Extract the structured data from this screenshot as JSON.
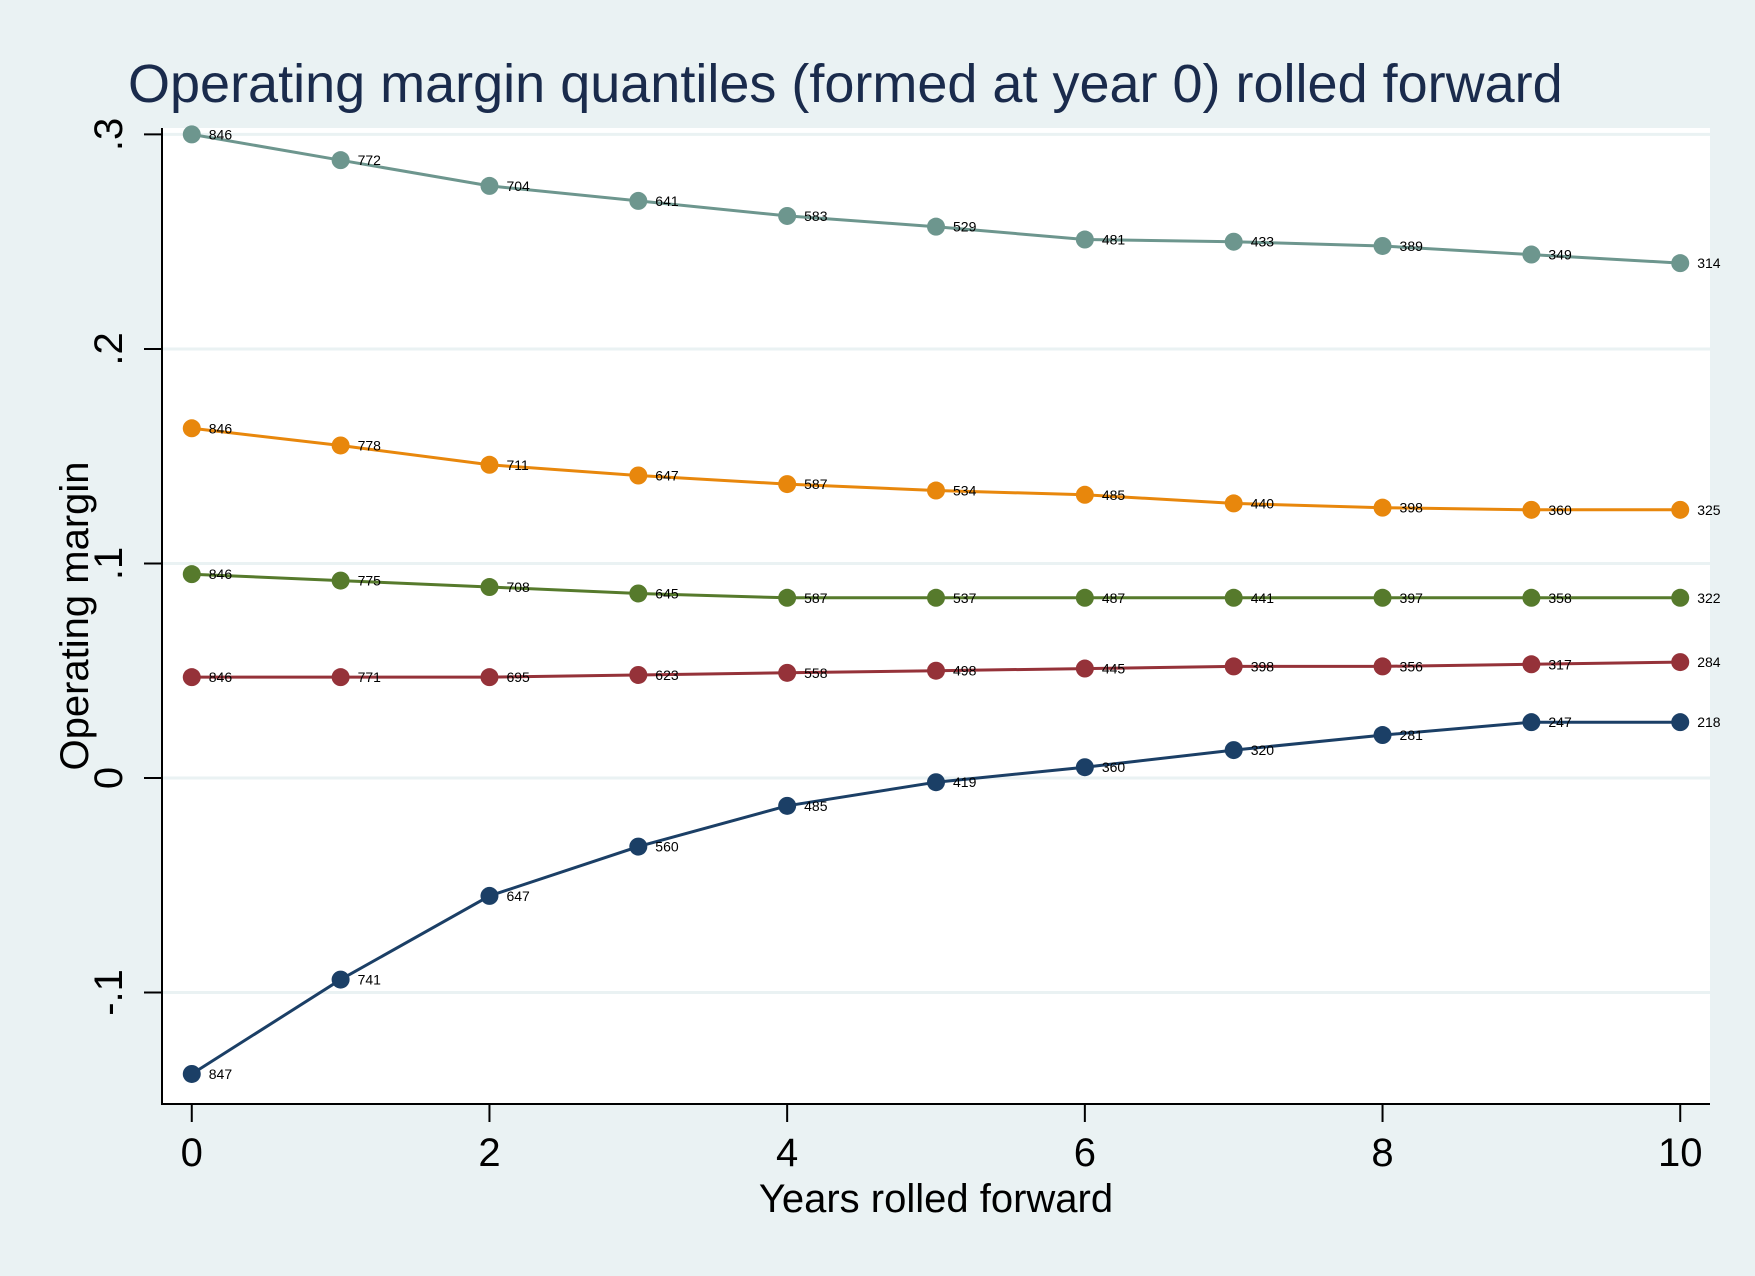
{
  "chart_data": {
    "type": "line",
    "title": "Operating margin quantiles (formed at year 0) rolled forward",
    "xlabel": "Years rolled forward",
    "ylabel": "Operating margin",
    "xlim": [
      -0.2,
      10.2
    ],
    "ylim": [
      -0.152,
      0.303
    ],
    "x_ticks": [
      0,
      2,
      4,
      6,
      8,
      10
    ],
    "x_tick_labels": [
      "0",
      "2",
      "4",
      "6",
      "8",
      "10"
    ],
    "y_ticks": [
      -0.1,
      0,
      0.1,
      0.2,
      0.3
    ],
    "y_tick_labels": [
      "-.1",
      "0",
      ".1",
      ".2",
      ".3"
    ],
    "grid": true,
    "legend": "none",
    "x": [
      0,
      1,
      2,
      3,
      4,
      5,
      6,
      7,
      8,
      9,
      10
    ],
    "series": [
      {
        "color": "#6d968e",
        "values": [
          0.3,
          0.288,
          0.276,
          0.269,
          0.262,
          0.257,
          0.251,
          0.25,
          0.248,
          0.244,
          0.24
        ],
        "labels": [
          "846",
          "772",
          "704",
          "641",
          "583",
          "529",
          "481",
          "433",
          "389",
          "349",
          "314"
        ]
      },
      {
        "color": "#e8870c",
        "values": [
          0.163,
          0.155,
          0.146,
          0.141,
          0.137,
          0.134,
          0.132,
          0.128,
          0.126,
          0.125,
          0.125
        ],
        "labels": [
          "846",
          "778",
          "711",
          "647",
          "587",
          "534",
          "485",
          "440",
          "398",
          "360",
          "325"
        ]
      },
      {
        "color": "#567a2c",
        "values": [
          0.095,
          0.092,
          0.089,
          0.086,
          0.084,
          0.084,
          0.084,
          0.084,
          0.084,
          0.084,
          0.084
        ],
        "labels": [
          "846",
          "775",
          "708",
          "645",
          "587",
          "537",
          "487",
          "441",
          "397",
          "358",
          "322"
        ]
      },
      {
        "color": "#953239",
        "values": [
          0.047,
          0.047,
          0.047,
          0.048,
          0.049,
          0.05,
          0.051,
          0.052,
          0.052,
          0.053,
          0.054
        ],
        "labels": [
          "846",
          "771",
          "695",
          "623",
          "558",
          "498",
          "445",
          "398",
          "356",
          "317",
          "284"
        ]
      },
      {
        "color": "#1b3f66",
        "values": [
          -0.138,
          -0.094,
          -0.055,
          -0.032,
          -0.013,
          -0.002,
          0.005,
          0.013,
          0.02,
          0.026,
          0.026
        ],
        "labels": [
          "847",
          "741",
          "647",
          "560",
          "485",
          "419",
          "360",
          "320",
          "281",
          "247",
          "218"
        ]
      }
    ]
  }
}
